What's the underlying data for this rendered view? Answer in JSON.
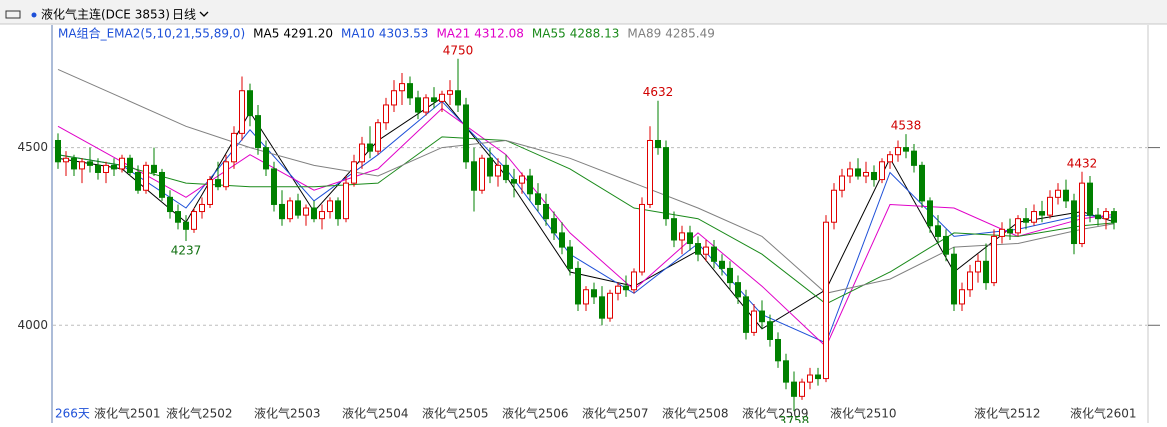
{
  "chart_data": {
    "type": "candlestick",
    "title": "液化气主连(DCE 3853)",
    "period": "日线",
    "indicator": "MA组合_EMA2(5,10,21,55,89,0)",
    "day_count": "266天",
    "up_color": "#e00000",
    "down_color": "#008000",
    "ylim": [
      3770,
      4845
    ],
    "yticks": [
      4000,
      4500
    ],
    "grid": true,
    "x_labels": [
      {
        "index": 5,
        "label": "液化气2501"
      },
      {
        "index": 14,
        "label": "液化气2502"
      },
      {
        "index": 25,
        "label": "液化气2503"
      },
      {
        "index": 36,
        "label": "液化气2504"
      },
      {
        "index": 46,
        "label": "液化气2505"
      },
      {
        "index": 56,
        "label": "液化气2506"
      },
      {
        "index": 66,
        "label": "液化气2507"
      },
      {
        "index": 76,
        "label": "液化气2508"
      },
      {
        "index": 86,
        "label": "液化气2509"
      },
      {
        "index": 97,
        "label": "液化气2510"
      },
      {
        "index": 115,
        "label": "液化气2512"
      },
      {
        "index": 127,
        "label": "液化气2601"
      }
    ],
    "high_labels": [
      50,
      75,
      106,
      128
    ],
    "low_labels": [
      16,
      92
    ],
    "ohlc": [
      [
        4520,
        4540,
        4440,
        4460
      ],
      [
        4460,
        4490,
        4420,
        4470
      ],
      [
        4470,
        4480,
        4420,
        4440
      ],
      [
        4440,
        4470,
        4400,
        4460
      ],
      [
        4460,
        4500,
        4430,
        4450
      ],
      [
        4450,
        4470,
        4410,
        4430
      ],
      [
        4430,
        4460,
        4400,
        4450
      ],
      [
        4450,
        4470,
        4420,
        4440
      ],
      [
        4440,
        4480,
        4430,
        4470
      ],
      [
        4470,
        4480,
        4420,
        4430
      ],
      [
        4430,
        4450,
        4370,
        4380
      ],
      [
        4380,
        4460,
        4370,
        4450
      ],
      [
        4450,
        4500,
        4420,
        4430
      ],
      [
        4430,
        4440,
        4350,
        4360
      ],
      [
        4360,
        4380,
        4300,
        4320
      ],
      [
        4320,
        4340,
        4270,
        4290
      ],
      [
        4290,
        4310,
        4237,
        4270
      ],
      [
        4270,
        4330,
        4260,
        4320
      ],
      [
        4320,
        4360,
        4300,
        4340
      ],
      [
        4340,
        4420,
        4330,
        4410
      ],
      [
        4410,
        4460,
        4380,
        4390
      ],
      [
        4390,
        4480,
        4380,
        4460
      ],
      [
        4460,
        4560,
        4440,
        4540
      ],
      [
        4540,
        4700,
        4520,
        4660
      ],
      [
        4660,
        4680,
        4560,
        4590
      ],
      [
        4590,
        4620,
        4480,
        4500
      ],
      [
        4500,
        4520,
        4420,
        4440
      ],
      [
        4440,
        4460,
        4320,
        4340
      ],
      [
        4340,
        4380,
        4280,
        4300
      ],
      [
        4300,
        4360,
        4290,
        4350
      ],
      [
        4350,
        4370,
        4300,
        4310
      ],
      [
        4310,
        4340,
        4280,
        4330
      ],
      [
        4330,
        4350,
        4290,
        4300
      ],
      [
        4300,
        4340,
        4270,
        4320
      ],
      [
        4320,
        4360,
        4300,
        4350
      ],
      [
        4350,
        4360,
        4280,
        4300
      ],
      [
        4300,
        4420,
        4290,
        4400
      ],
      [
        4400,
        4480,
        4390,
        4460
      ],
      [
        4460,
        4530,
        4440,
        4510
      ],
      [
        4510,
        4560,
        4470,
        4490
      ],
      [
        4490,
        4580,
        4480,
        4570
      ],
      [
        4570,
        4640,
        4550,
        4620
      ],
      [
        4620,
        4690,
        4600,
        4660
      ],
      [
        4660,
        4710,
        4620,
        4680
      ],
      [
        4680,
        4700,
        4620,
        4640
      ],
      [
        4640,
        4660,
        4580,
        4600
      ],
      [
        4600,
        4650,
        4590,
        4640
      ],
      [
        4640,
        4670,
        4610,
        4630
      ],
      [
        4630,
        4660,
        4600,
        4650
      ],
      [
        4650,
        4690,
        4620,
        4660
      ],
      [
        4660,
        4750,
        4600,
        4620
      ],
      [
        4620,
        4640,
        4440,
        4460
      ],
      [
        4460,
        4500,
        4320,
        4380
      ],
      [
        4380,
        4480,
        4370,
        4470
      ],
      [
        4470,
        4500,
        4400,
        4420
      ],
      [
        4420,
        4470,
        4390,
        4450
      ],
      [
        4450,
        4480,
        4400,
        4410
      ],
      [
        4410,
        4440,
        4360,
        4400
      ],
      [
        4400,
        4430,
        4370,
        4420
      ],
      [
        4420,
        4440,
        4350,
        4370
      ],
      [
        4370,
        4400,
        4320,
        4340
      ],
      [
        4340,
        4370,
        4280,
        4300
      ],
      [
        4300,
        4320,
        4240,
        4260
      ],
      [
        4260,
        4290,
        4200,
        4220
      ],
      [
        4220,
        4240,
        4140,
        4160
      ],
      [
        4160,
        4180,
        4040,
        4060
      ],
      [
        4060,
        4110,
        4040,
        4100
      ],
      [
        4100,
        4120,
        4060,
        4080
      ],
      [
        4080,
        4110,
        4000,
        4020
      ],
      [
        4020,
        4100,
        4010,
        4090
      ],
      [
        4090,
        4120,
        4070,
        4110
      ],
      [
        4110,
        4140,
        4080,
        4100
      ],
      [
        4100,
        4160,
        4090,
        4150
      ],
      [
        4150,
        4360,
        4140,
        4340
      ],
      [
        4340,
        4560,
        4330,
        4520
      ],
      [
        4520,
        4632,
        4480,
        4500
      ],
      [
        4500,
        4520,
        4280,
        4300
      ],
      [
        4300,
        4320,
        4220,
        4240
      ],
      [
        4240,
        4280,
        4200,
        4260
      ],
      [
        4260,
        4280,
        4210,
        4230
      ],
      [
        4230,
        4250,
        4180,
        4200
      ],
      [
        4200,
        4240,
        4180,
        4220
      ],
      [
        4220,
        4240,
        4160,
        4180
      ],
      [
        4180,
        4200,
        4140,
        4160
      ],
      [
        4160,
        4180,
        4100,
        4120
      ],
      [
        4120,
        4140,
        4060,
        4080
      ],
      [
        4080,
        4100,
        3960,
        3980
      ],
      [
        3980,
        4060,
        3970,
        4040
      ],
      [
        4040,
        4070,
        3990,
        4010
      ],
      [
        4010,
        4030,
        3940,
        3960
      ],
      [
        3960,
        3980,
        3880,
        3900
      ],
      [
        3900,
        3920,
        3820,
        3840
      ],
      [
        3840,
        3870,
        3758,
        3800
      ],
      [
        3800,
        3850,
        3790,
        3840
      ],
      [
        3840,
        3880,
        3820,
        3860
      ],
      [
        3860,
        3880,
        3830,
        3850
      ],
      [
        3850,
        4310,
        3840,
        4290
      ],
      [
        4290,
        4400,
        4270,
        4380
      ],
      [
        4380,
        4440,
        4360,
        4420
      ],
      [
        4420,
        4460,
        4400,
        4440
      ],
      [
        4440,
        4470,
        4410,
        4420
      ],
      [
        4420,
        4460,
        4400,
        4430
      ],
      [
        4430,
        4450,
        4390,
        4410
      ],
      [
        4410,
        4470,
        4400,
        4460
      ],
      [
        4460,
        4490,
        4440,
        4480
      ],
      [
        4480,
        4520,
        4460,
        4500
      ],
      [
        4500,
        4538,
        4470,
        4490
      ],
      [
        4490,
        4510,
        4430,
        4450
      ],
      [
        4450,
        4460,
        4330,
        4350
      ],
      [
        4350,
        4360,
        4260,
        4280
      ],
      [
        4280,
        4310,
        4230,
        4250
      ],
      [
        4250,
        4270,
        4180,
        4200
      ],
      [
        4200,
        4220,
        4040,
        4060
      ],
      [
        4060,
        4120,
        4040,
        4100
      ],
      [
        4100,
        4170,
        4080,
        4150
      ],
      [
        4150,
        4200,
        4120,
        4180
      ],
      [
        4180,
        4230,
        4100,
        4120
      ],
      [
        4120,
        4270,
        4110,
        4250
      ],
      [
        4250,
        4290,
        4230,
        4270
      ],
      [
        4270,
        4300,
        4240,
        4260
      ],
      [
        4260,
        4310,
        4250,
        4300
      ],
      [
        4300,
        4330,
        4270,
        4290
      ],
      [
        4290,
        4340,
        4280,
        4320
      ],
      [
        4320,
        4350,
        4290,
        4310
      ],
      [
        4310,
        4380,
        4300,
        4360
      ],
      [
        4360,
        4400,
        4340,
        4380
      ],
      [
        4380,
        4410,
        4330,
        4350
      ],
      [
        4350,
        4370,
        4200,
        4230
      ],
      [
        4230,
        4432,
        4220,
        4400
      ],
      [
        4400,
        4420,
        4290,
        4310
      ],
      [
        4310,
        4330,
        4280,
        4300
      ],
      [
        4300,
        4330,
        4270,
        4320
      ],
      [
        4320,
        4330,
        4270,
        4290
      ]
    ],
    "ma_index": [
      0,
      8,
      16,
      24,
      32,
      40,
      48,
      56,
      64,
      72,
      80,
      88,
      96,
      104,
      112,
      120,
      128,
      132
    ],
    "series": [
      {
        "name": "MA5",
        "color": "#000000",
        "last": {
          "value": 4291.2,
          "label": "4291.20"
        },
        "values": [
          4470,
          4440,
          4290,
          4600,
          4320,
          4520,
          4640,
          4420,
          4150,
          4110,
          4210,
          3990,
          4100,
          4470,
          4150,
          4290,
          4320,
          4291.2
        ]
      },
      {
        "name": "MA10",
        "color": "#1e50d8",
        "last": {
          "value": 4303.53,
          "label": "4303.53"
        },
        "values": [
          4480,
          4450,
          4330,
          4550,
          4350,
          4480,
          4630,
          4440,
          4200,
          4090,
          4230,
          4030,
          3950,
          4430,
          4250,
          4270,
          4310,
          4303.53
        ]
      },
      {
        "name": "MA21",
        "color": "#e000c8",
        "last": {
          "value": 4312.08,
          "label": "4312.08"
        },
        "values": [
          4560,
          4460,
          4360,
          4480,
          4380,
          4440,
          4610,
          4480,
          4260,
          4100,
          4260,
          4110,
          3940,
          4340,
          4330,
          4250,
          4300,
          4312.08
        ]
      },
      {
        "name": "MA55",
        "color": "#1a8a1a",
        "last": {
          "value": 4288.13,
          "label": "4288.13"
        },
        "values": [
          4480,
          4450,
          4400,
          4390,
          4390,
          4400,
          4530,
          4520,
          4440,
          4330,
          4300,
          4200,
          4060,
          4150,
          4260,
          4250,
          4280,
          4288.13
        ]
      },
      {
        "name": "MA89",
        "color": "#808080",
        "last": {
          "value": 4285.49,
          "label": "4285.49"
        },
        "values": [
          4720,
          4640,
          4560,
          4500,
          4450,
          4420,
          4500,
          4520,
          4470,
          4400,
          4330,
          4250,
          4090,
          4130,
          4220,
          4230,
          4270,
          4285.49
        ]
      }
    ]
  }
}
